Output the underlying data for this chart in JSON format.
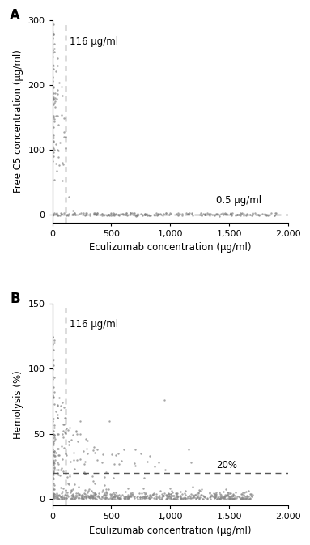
{
  "panel_A": {
    "label": "A",
    "xlabel": "Eculizumab concentration (μg/ml)",
    "ylabel": "Free C5 concentration (μg/ml)",
    "xlim": [
      0,
      2000
    ],
    "ylim": [
      -12,
      300
    ],
    "xticks": [
      0,
      500,
      1000,
      1500,
      2000
    ],
    "xticklabels": [
      "0",
      "500",
      "1,000",
      "1,500",
      "2,000"
    ],
    "yticks": [
      0,
      100,
      200,
      300
    ],
    "vline_x": 116,
    "vline_label": "116 μg/ml",
    "hline_y": 0.5,
    "hline_label": "0.5 μg/ml",
    "dot_color": "#888888",
    "dot_size": 3,
    "line_color": "#555555"
  },
  "panel_B": {
    "label": "B",
    "xlabel": "Eculizumab concentration (μg/ml)",
    "ylabel": "Hemolysis (%)",
    "xlim": [
      0,
      2000
    ],
    "ylim": [
      -5,
      150
    ],
    "xticks": [
      0,
      500,
      1000,
      1500,
      2000
    ],
    "xticklabels": [
      "0",
      "500",
      "1,000",
      "1,500",
      "2,000"
    ],
    "yticks": [
      0,
      50,
      100,
      150
    ],
    "vline_x": 116,
    "vline_label": "116 μg/ml",
    "hline_y": 20,
    "hline_label": "20%",
    "dot_color": "#888888",
    "dot_size": 3,
    "line_color": "#555555"
  }
}
